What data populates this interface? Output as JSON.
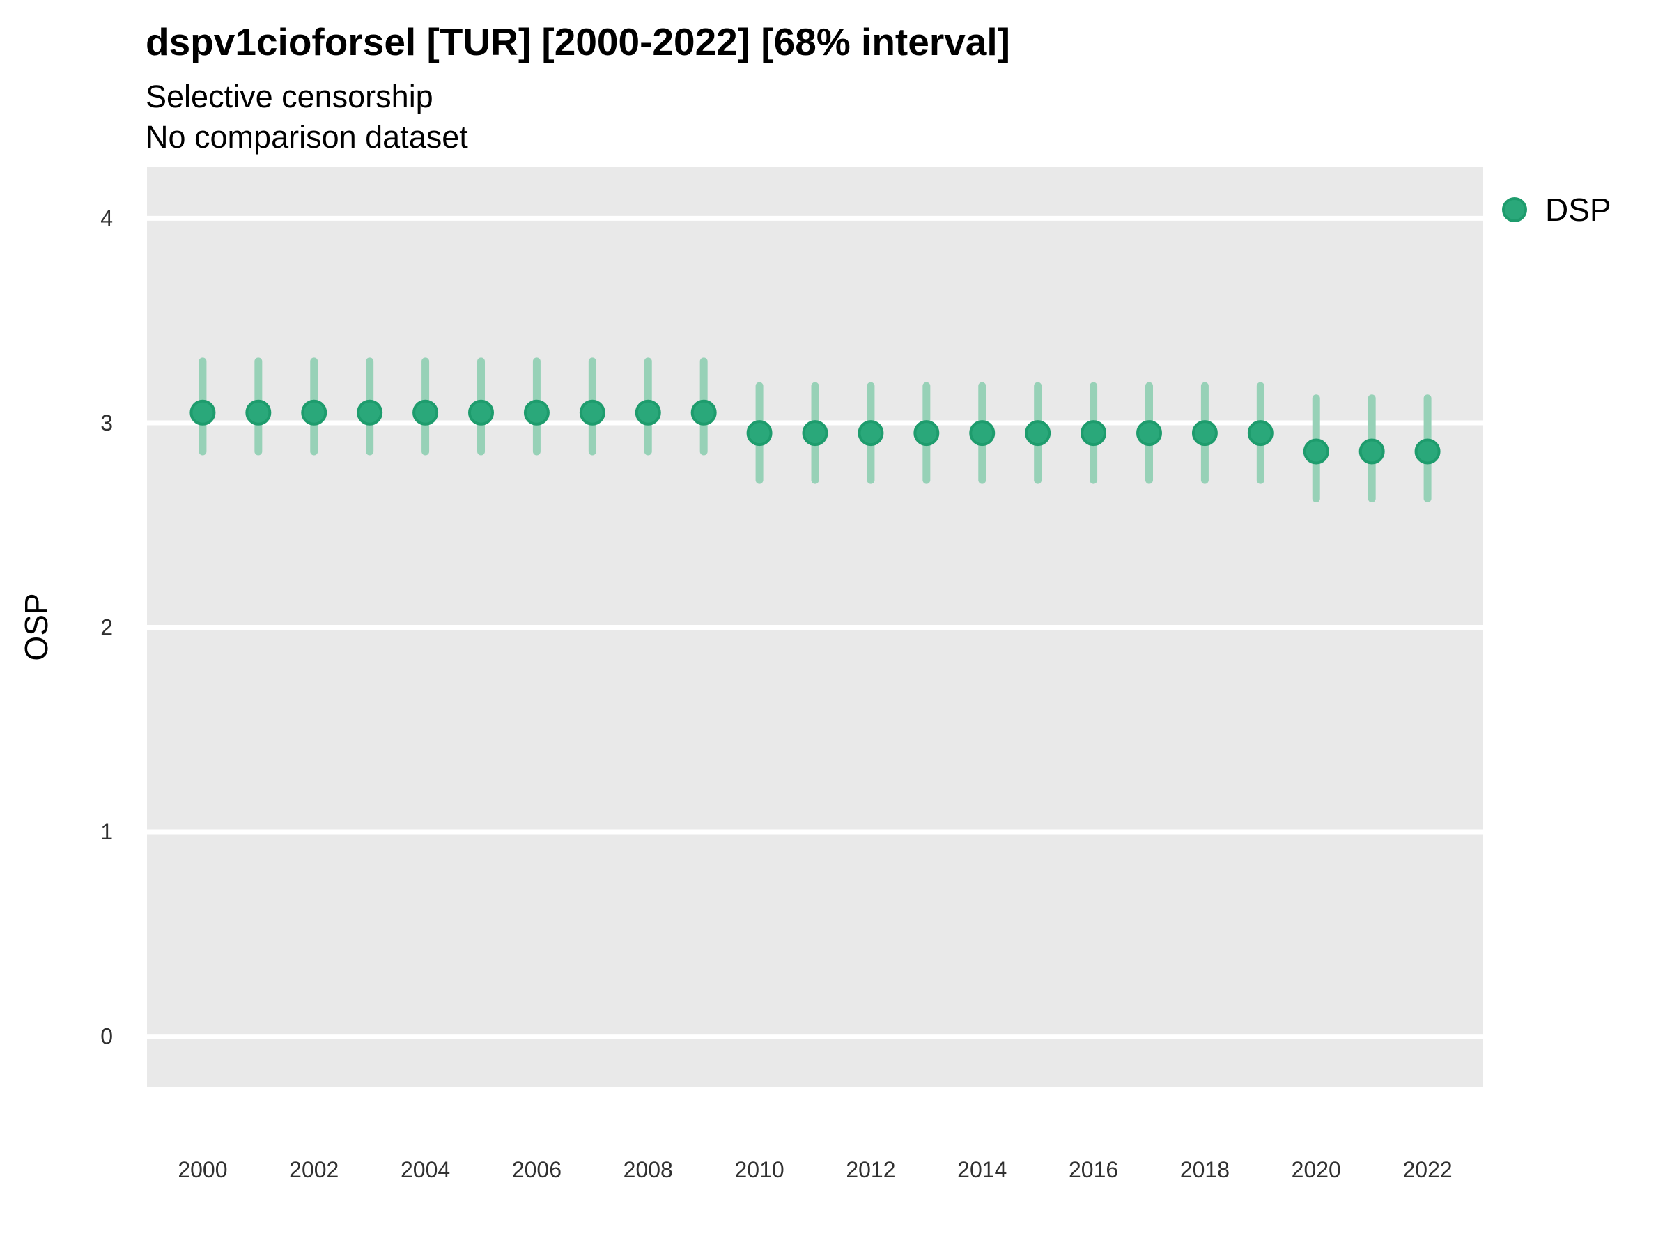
{
  "title": "dspv1cioforsel [TUR] [2000-2022] [68% interval]",
  "subtitle1": "Selective censorship",
  "subtitle2": "No comparison dataset",
  "ylabel": "OSP",
  "legend": {
    "label": "DSP"
  },
  "colors": {
    "point_fill": "#2aa87a",
    "point_stroke": "#1e9c6d",
    "interval": "#97d1b7",
    "panel_bg": "#e9e9e9",
    "gridline": "#ffffff",
    "tick_text": "#303030",
    "text": "#000000"
  },
  "chart_data": {
    "type": "scatter",
    "title": "dspv1cioforsel [TUR] [2000-2022] [68% interval]",
    "subtitle": "Selective censorship / No comparison dataset",
    "xlabel": "",
    "ylabel": "OSP",
    "grid": "horizontal-major-only",
    "legend_position": "right-top",
    "interval": "68%",
    "xlim": [
      1999,
      2023
    ],
    "ylim": [
      -0.25,
      4.25
    ],
    "x_ticks": [
      2000,
      2002,
      2004,
      2006,
      2008,
      2010,
      2012,
      2014,
      2016,
      2018,
      2020,
      2022
    ],
    "y_ticks": [
      0,
      1,
      2,
      3,
      4
    ],
    "series": [
      {
        "name": "DSP",
        "x": [
          2000,
          2001,
          2002,
          2003,
          2004,
          2005,
          2006,
          2007,
          2008,
          2009,
          2010,
          2011,
          2012,
          2013,
          2014,
          2015,
          2016,
          2017,
          2018,
          2019,
          2020,
          2021,
          2022
        ],
        "y": [
          3.05,
          3.05,
          3.05,
          3.05,
          3.05,
          3.05,
          3.05,
          3.05,
          3.05,
          3.05,
          2.95,
          2.95,
          2.95,
          2.95,
          2.95,
          2.95,
          2.95,
          2.95,
          2.95,
          2.95,
          2.86,
          2.86,
          2.86
        ],
        "y_lo": [
          2.86,
          2.86,
          2.86,
          2.86,
          2.86,
          2.86,
          2.86,
          2.86,
          2.86,
          2.86,
          2.72,
          2.72,
          2.72,
          2.72,
          2.72,
          2.72,
          2.72,
          2.72,
          2.72,
          2.72,
          2.63,
          2.63,
          2.63
        ],
        "y_hi": [
          3.3,
          3.3,
          3.3,
          3.3,
          3.3,
          3.3,
          3.3,
          3.3,
          3.3,
          3.3,
          3.18,
          3.18,
          3.18,
          3.18,
          3.18,
          3.18,
          3.18,
          3.18,
          3.18,
          3.18,
          3.12,
          3.12,
          3.12
        ]
      }
    ]
  }
}
